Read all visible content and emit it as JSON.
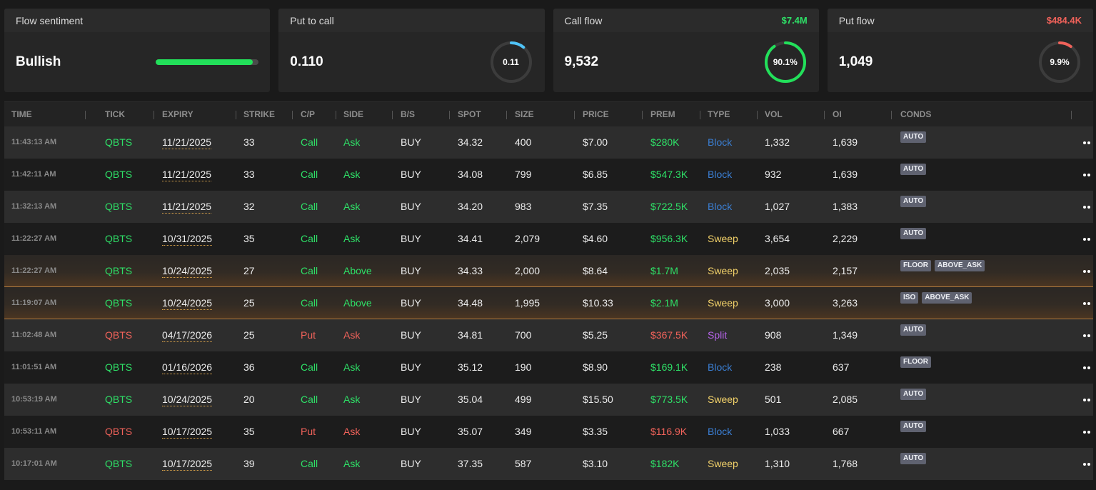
{
  "cards": [
    {
      "label": "Flow sentiment",
      "value": "Bullish",
      "bar_fraction": 0.94,
      "bar_color": "#22e05a"
    },
    {
      "label": "Put to call",
      "value": "0.110",
      "ring_text": "0.11",
      "ring_fraction": 0.11,
      "ring_color": "#4fc3f7"
    },
    {
      "label": "Call flow",
      "amount": "$7.4M",
      "amount_color": "#2ee067",
      "value": "9,532",
      "ring_text": "90.1%",
      "ring_fraction": 0.901,
      "ring_color": "#22e05a"
    },
    {
      "label": "Put flow",
      "amount": "$484.4K",
      "amount_color": "#f0625a",
      "value": "1,049",
      "ring_text": "9.9%",
      "ring_fraction": 0.099,
      "ring_color": "#f0625a"
    }
  ],
  "columns": [
    "TIME",
    "TICK",
    "EXPIRY",
    "STRIKE",
    "C/P",
    "SIDE",
    "B/S",
    "SPOT",
    "SIZE",
    "PRICE",
    "PREM",
    "TYPE",
    "VOL",
    "OI",
    "CONDS"
  ],
  "rows": [
    {
      "time": "11:43:13 AM",
      "tick": "QBTS",
      "expiry": "11/21/2025",
      "strike": "33",
      "cp": "Call",
      "side": "Ask",
      "bs": "BUY",
      "spot": "34.32",
      "size": "400",
      "price": "$7.00",
      "prem": "$280K",
      "type": "Block",
      "vol": "1,332",
      "oi": "1,639",
      "conds": [
        "AUTO"
      ],
      "highlight": false
    },
    {
      "time": "11:42:11 AM",
      "tick": "QBTS",
      "expiry": "11/21/2025",
      "strike": "33",
      "cp": "Call",
      "side": "Ask",
      "bs": "BUY",
      "spot": "34.08",
      "size": "799",
      "price": "$6.85",
      "prem": "$547.3K",
      "type": "Block",
      "vol": "932",
      "oi": "1,639",
      "conds": [
        "AUTO"
      ],
      "highlight": false
    },
    {
      "time": "11:32:13 AM",
      "tick": "QBTS",
      "expiry": "11/21/2025",
      "strike": "32",
      "cp": "Call",
      "side": "Ask",
      "bs": "BUY",
      "spot": "34.20",
      "size": "983",
      "price": "$7.35",
      "prem": "$722.5K",
      "type": "Block",
      "vol": "1,027",
      "oi": "1,383",
      "conds": [
        "AUTO"
      ],
      "highlight": false
    },
    {
      "time": "11:22:27 AM",
      "tick": "QBTS",
      "expiry": "10/31/2025",
      "strike": "35",
      "cp": "Call",
      "side": "Ask",
      "bs": "BUY",
      "spot": "34.41",
      "size": "2,079",
      "price": "$4.60",
      "prem": "$956.3K",
      "type": "Sweep",
      "vol": "3,654",
      "oi": "2,229",
      "conds": [
        "AUTO"
      ],
      "highlight": false
    },
    {
      "time": "11:22:27 AM",
      "tick": "QBTS",
      "expiry": "10/24/2025",
      "strike": "27",
      "cp": "Call",
      "side": "Above",
      "bs": "BUY",
      "spot": "34.33",
      "size": "2,000",
      "price": "$8.64",
      "prem": "$1.7M",
      "type": "Sweep",
      "vol": "2,035",
      "oi": "2,157",
      "conds": [
        "FLOOR",
        "ABOVE_ASK"
      ],
      "highlight": true
    },
    {
      "time": "11:19:07 AM",
      "tick": "QBTS",
      "expiry": "10/24/2025",
      "strike": "25",
      "cp": "Call",
      "side": "Above",
      "bs": "BUY",
      "spot": "34.48",
      "size": "1,995",
      "price": "$10.33",
      "prem": "$2.1M",
      "type": "Sweep",
      "vol": "3,000",
      "oi": "3,263",
      "conds": [
        "ISO",
        "ABOVE_ASK"
      ],
      "highlight": true
    },
    {
      "time": "11:02:48 AM",
      "tick": "QBTS",
      "expiry": "04/17/2026",
      "strike": "25",
      "cp": "Put",
      "side": "Ask",
      "bs": "BUY",
      "spot": "34.81",
      "size": "700",
      "price": "$5.25",
      "prem": "$367.5K",
      "type": "Split",
      "vol": "908",
      "oi": "1,349",
      "conds": [
        "AUTO"
      ],
      "highlight": false
    },
    {
      "time": "11:01:51 AM",
      "tick": "QBTS",
      "expiry": "01/16/2026",
      "strike": "36",
      "cp": "Call",
      "side": "Ask",
      "bs": "BUY",
      "spot": "35.12",
      "size": "190",
      "price": "$8.90",
      "prem": "$169.1K",
      "type": "Block",
      "vol": "238",
      "oi": "637",
      "conds": [
        "FLOOR"
      ],
      "highlight": false
    },
    {
      "time": "10:53:19 AM",
      "tick": "QBTS",
      "expiry": "10/24/2025",
      "strike": "20",
      "cp": "Call",
      "side": "Ask",
      "bs": "BUY",
      "spot": "35.04",
      "size": "499",
      "price": "$15.50",
      "prem": "$773.5K",
      "type": "Sweep",
      "vol": "501",
      "oi": "2,085",
      "conds": [
        "AUTO"
      ],
      "highlight": false
    },
    {
      "time": "10:53:11 AM",
      "tick": "QBTS",
      "expiry": "10/17/2025",
      "strike": "35",
      "cp": "Put",
      "side": "Ask",
      "bs": "BUY",
      "spot": "35.07",
      "size": "349",
      "price": "$3.35",
      "prem": "$116.9K",
      "type": "Block",
      "vol": "1,033",
      "oi": "667",
      "conds": [
        "AUTO"
      ],
      "highlight": false
    },
    {
      "time": "10:17:01 AM",
      "tick": "QBTS",
      "expiry": "10/17/2025",
      "strike": "39",
      "cp": "Call",
      "side": "Ask",
      "bs": "BUY",
      "spot": "37.35",
      "size": "587",
      "price": "$3.10",
      "prem": "$182K",
      "type": "Sweep",
      "vol": "1,310",
      "oi": "1,768",
      "conds": [
        "AUTO"
      ],
      "highlight": false
    }
  ],
  "colors": {
    "call": "#2ee067",
    "put": "#f0625a",
    "block": "#3b7fd4",
    "sweep": "#f3d26a",
    "split": "#b463e6"
  }
}
